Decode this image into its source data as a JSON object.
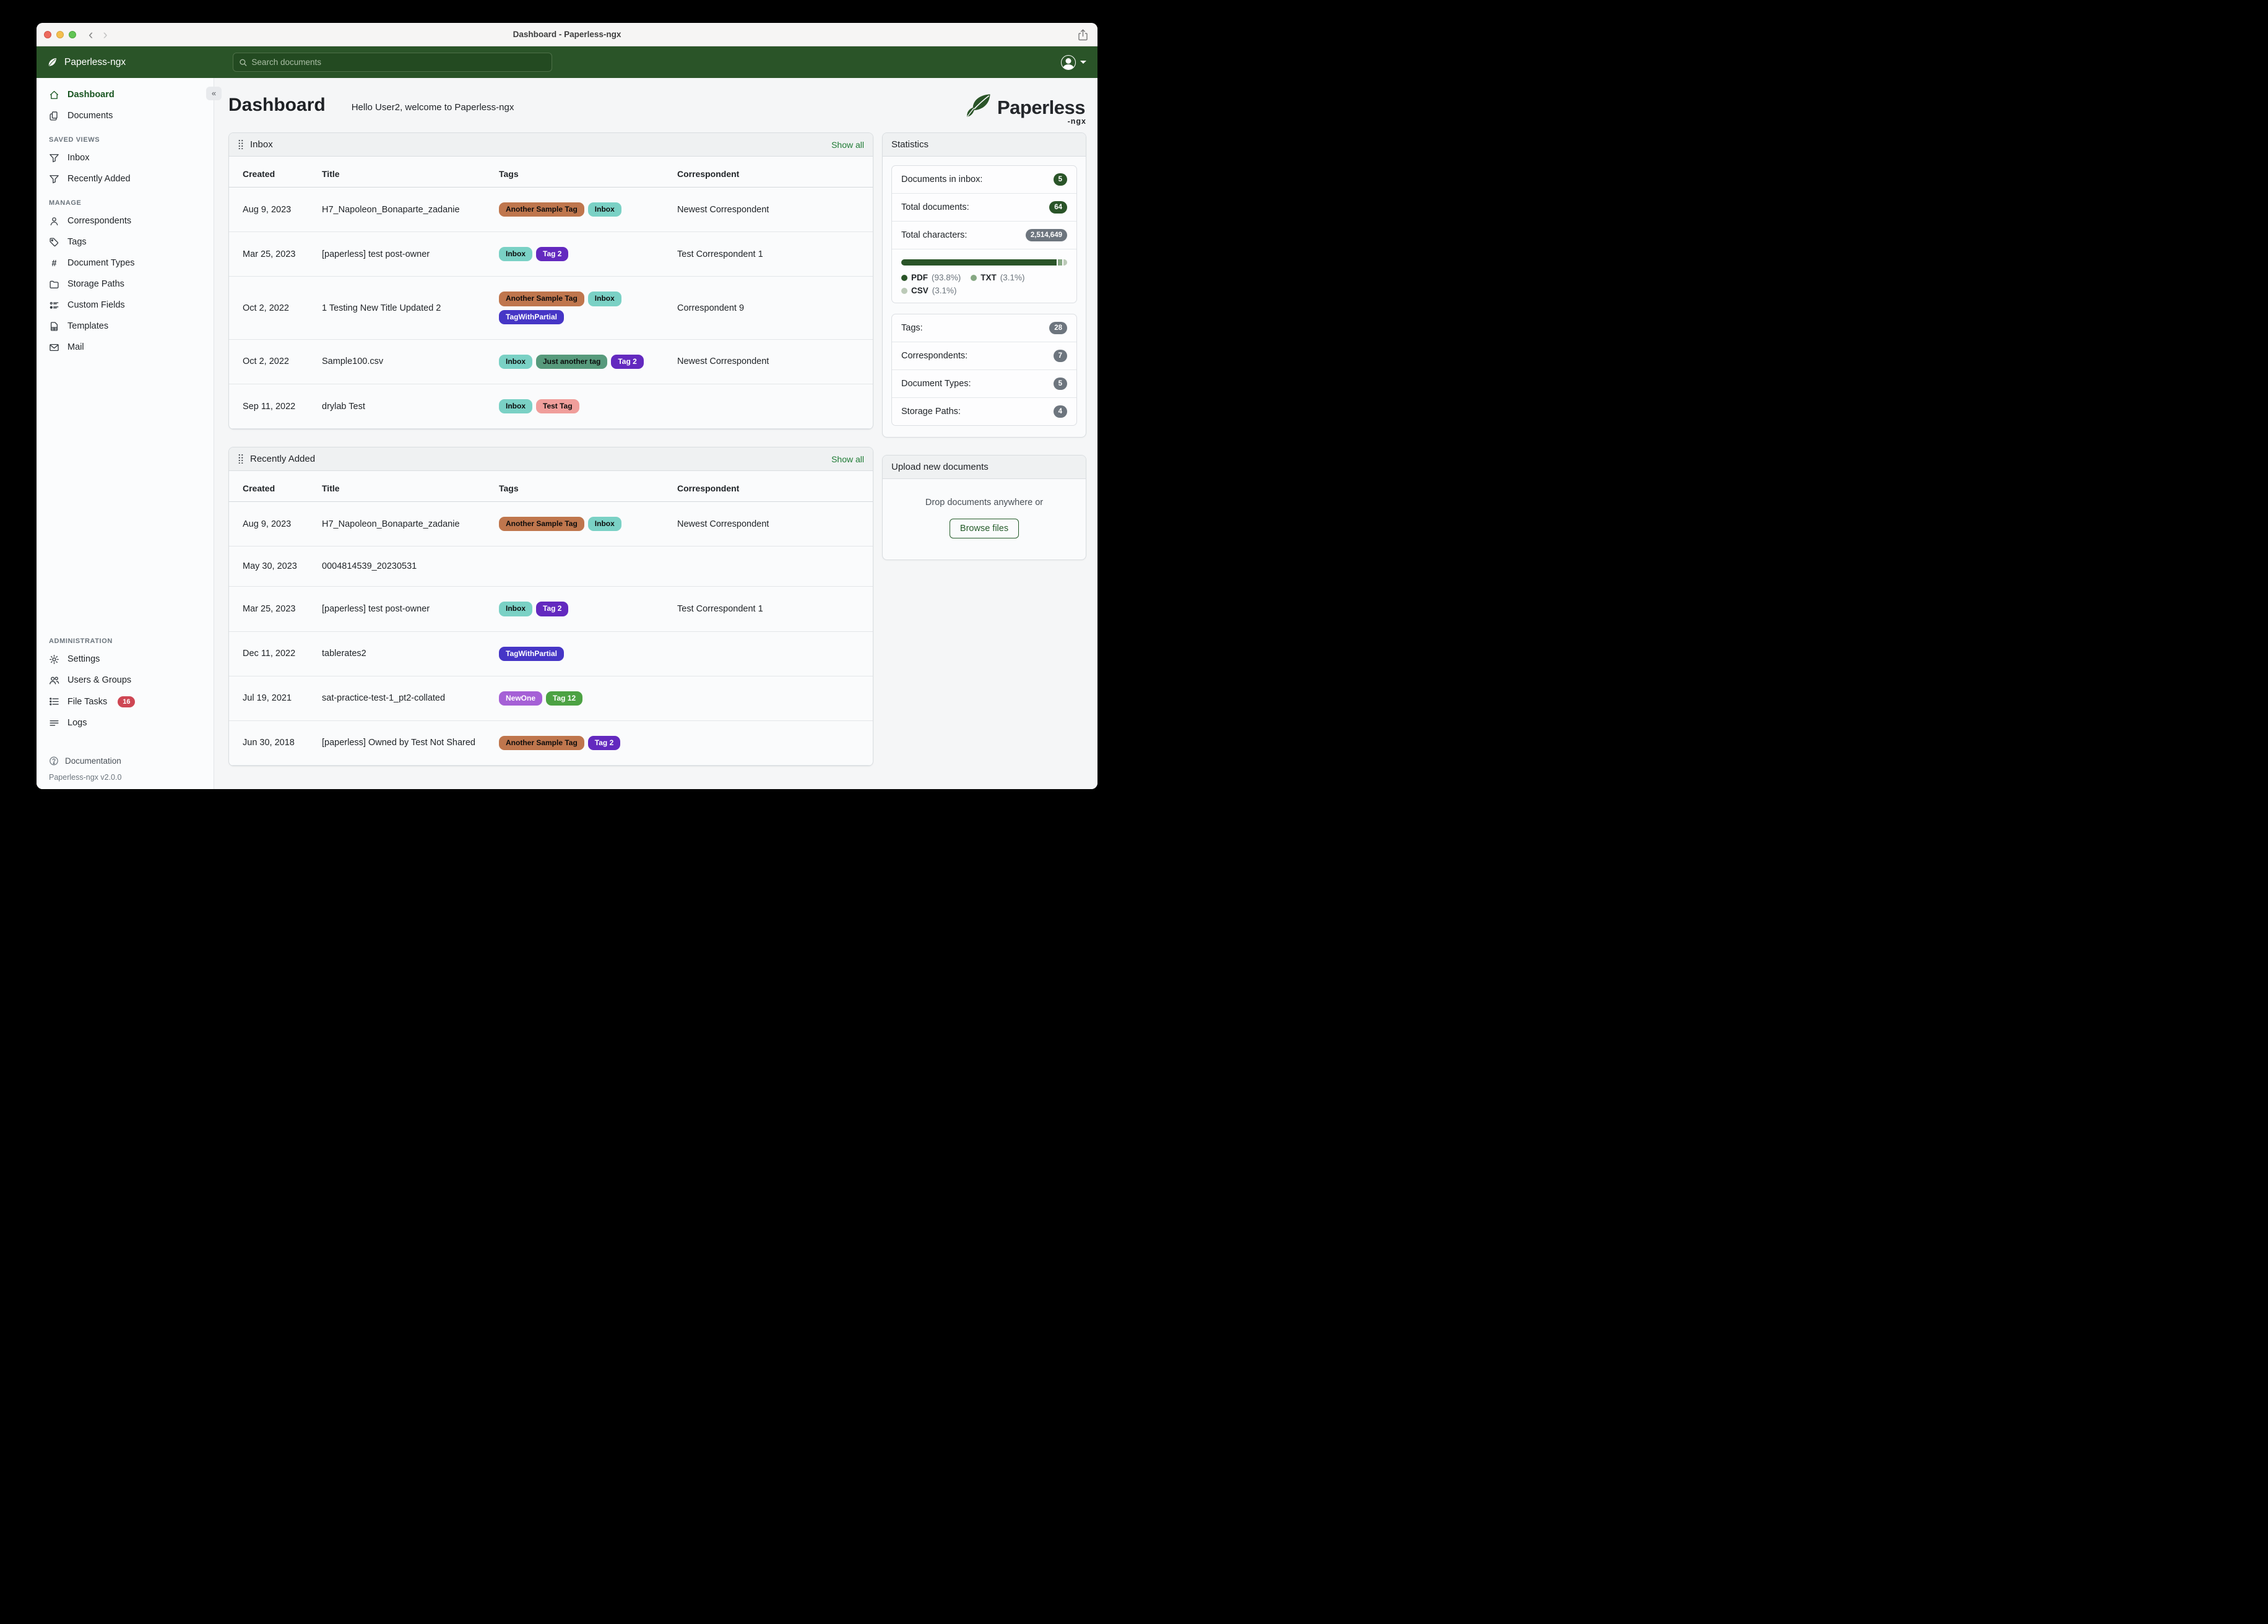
{
  "window": {
    "title": "Dashboard - Paperless-ngx"
  },
  "navbar": {
    "brand": "Paperless-ngx",
    "search_placeholder": "Search documents"
  },
  "sidebar": {
    "groups": [
      {
        "heading": null,
        "items": [
          {
            "id": "dashboard",
            "label": "Dashboard",
            "icon": "house",
            "active": true
          },
          {
            "id": "documents",
            "label": "Documents",
            "icon": "documents",
            "active": false
          }
        ]
      },
      {
        "heading": "SAVED VIEWS",
        "items": [
          {
            "id": "inbox",
            "label": "Inbox",
            "icon": "funnel",
            "active": false
          },
          {
            "id": "recently-added",
            "label": "Recently Added",
            "icon": "funnel",
            "active": false
          }
        ]
      },
      {
        "heading": "MANAGE",
        "items": [
          {
            "id": "correspondents",
            "label": "Correspondents",
            "icon": "person",
            "active": false
          },
          {
            "id": "tags",
            "label": "Tags",
            "icon": "tag",
            "active": false
          },
          {
            "id": "document-types",
            "label": "Document Types",
            "icon": "hash",
            "active": false
          },
          {
            "id": "storage-paths",
            "label": "Storage Paths",
            "icon": "folder",
            "active": false
          },
          {
            "id": "custom-fields",
            "label": "Custom Fields",
            "icon": "fields",
            "active": false
          },
          {
            "id": "templates",
            "label": "Templates",
            "icon": "file",
            "active": false
          },
          {
            "id": "mail",
            "label": "Mail",
            "icon": "mail",
            "active": false
          }
        ]
      },
      {
        "heading": "ADMINISTRATION",
        "bottom": true,
        "items": [
          {
            "id": "settings",
            "label": "Settings",
            "icon": "gear",
            "active": false
          },
          {
            "id": "users-groups",
            "label": "Users & Groups",
            "icon": "users",
            "active": false
          },
          {
            "id": "file-tasks",
            "label": "File Tasks",
            "icon": "tasks",
            "active": false,
            "badge": "16"
          },
          {
            "id": "logs",
            "label": "Logs",
            "icon": "logs",
            "active": false
          }
        ]
      }
    ],
    "documentation_label": "Documentation",
    "version": "Paperless-ngx v2.0.0"
  },
  "page": {
    "title": "Dashboard",
    "greeting": "Hello User2, welcome to Paperless-ngx",
    "logo_text": "Paperless",
    "logo_sub": "-ngx"
  },
  "tag_colors": {
    "Inbox": {
      "bg": "#7ad1c5",
      "fg": "#0c0c0c"
    },
    "Another Sample Tag": {
      "bg": "#bf764d",
      "fg": "#0c0c0c"
    },
    "Tag 2": {
      "bg": "#6329bf",
      "fg": "#ffffff"
    },
    "TagWithPartial": {
      "bg": "#4636c6",
      "fg": "#ffffff"
    },
    "Just another tag": {
      "bg": "#579a7c",
      "fg": "#0c0c0c"
    },
    "Test Tag": {
      "bg": "#f09e9b",
      "fg": "#0c0c0c"
    },
    "NewOne": {
      "bg": "#a560d6",
      "fg": "#ffffff"
    },
    "Tag 12": {
      "bg": "#4ca243",
      "fg": "#ffffff"
    }
  },
  "inbox_card": {
    "title": "Inbox",
    "show_all": "Show all",
    "columns": [
      "Created",
      "Title",
      "Tags",
      "Correspondent"
    ],
    "rows": [
      {
        "created": "Aug 9, 2023",
        "title": "H7_Napoleon_Bonaparte_zadanie",
        "tags": [
          "Another Sample Tag",
          "Inbox"
        ],
        "correspondent": "Newest Correspondent"
      },
      {
        "created": "Mar 25, 2023",
        "title": "[paperless] test post-owner",
        "tags": [
          "Inbox",
          "Tag 2"
        ],
        "correspondent": "Test Correspondent 1"
      },
      {
        "created": "Oct 2, 2022",
        "title": "1 Testing New Title Updated 2",
        "tags": [
          "Another Sample Tag",
          "Inbox",
          "TagWithPartial"
        ],
        "correspondent": "Correspondent 9"
      },
      {
        "created": "Oct 2, 2022",
        "title": "Sample100.csv",
        "tags": [
          "Inbox",
          "Just another tag",
          "Tag 2"
        ],
        "correspondent": "Newest Correspondent"
      },
      {
        "created": "Sep 11, 2022",
        "title": "drylab Test",
        "tags": [
          "Inbox",
          "Test Tag"
        ],
        "correspondent": ""
      }
    ]
  },
  "recent_card": {
    "title": "Recently Added",
    "show_all": "Show all",
    "columns": [
      "Created",
      "Title",
      "Tags",
      "Correspondent"
    ],
    "rows": [
      {
        "created": "Aug 9, 2023",
        "title": "H7_Napoleon_Bonaparte_zadanie",
        "tags": [
          "Another Sample Tag",
          "Inbox"
        ],
        "correspondent": "Newest Correspondent"
      },
      {
        "created": "May 30, 2023",
        "title": "0004814539_20230531",
        "tags": [],
        "correspondent": ""
      },
      {
        "created": "Mar 25, 2023",
        "title": "[paperless] test post-owner",
        "tags": [
          "Inbox",
          "Tag 2"
        ],
        "correspondent": "Test Correspondent 1"
      },
      {
        "created": "Dec 11, 2022",
        "title": "tablerates2",
        "tags": [
          "TagWithPartial"
        ],
        "correspondent": ""
      },
      {
        "created": "Jul 19, 2021",
        "title": "sat-practice-test-1_pt2-collated",
        "tags": [
          "NewOne",
          "Tag 12"
        ],
        "correspondent": ""
      },
      {
        "created": "Jun 30, 2018",
        "title": "[paperless] Owned by Test Not Shared",
        "tags": [
          "Another Sample Tag",
          "Tag 2"
        ],
        "correspondent": ""
      }
    ]
  },
  "statistics": {
    "title": "Statistics",
    "primary_rows": [
      {
        "label": "Documents in inbox:",
        "value": "5",
        "badge": "green"
      },
      {
        "label": "Total documents:",
        "value": "64",
        "badge": "green"
      },
      {
        "label": "Total characters:",
        "value": "2,514,649",
        "badge": "gray"
      }
    ],
    "chart": {
      "type": "stacked-bar",
      "segments": [
        {
          "label": "PDF",
          "pct": 93.8,
          "pct_text": "(93.8%)",
          "color": "#2a5428"
        },
        {
          "label": "TXT",
          "pct": 3.1,
          "pct_text": "(3.1%)",
          "color": "#86a883"
        },
        {
          "label": "CSV",
          "pct": 3.1,
          "pct_text": "(3.1%)",
          "color": "#bccab8"
        }
      ]
    },
    "secondary_rows": [
      {
        "label": "Tags:",
        "value": "28",
        "badge": "gray"
      },
      {
        "label": "Correspondents:",
        "value": "7",
        "badge": "gray"
      },
      {
        "label": "Document Types:",
        "value": "5",
        "badge": "gray"
      },
      {
        "label": "Storage Paths:",
        "value": "4",
        "badge": "gray"
      }
    ]
  },
  "upload": {
    "title": "Upload new documents",
    "drop_text": "Drop documents anywhere or",
    "button_label": "Browse files"
  }
}
